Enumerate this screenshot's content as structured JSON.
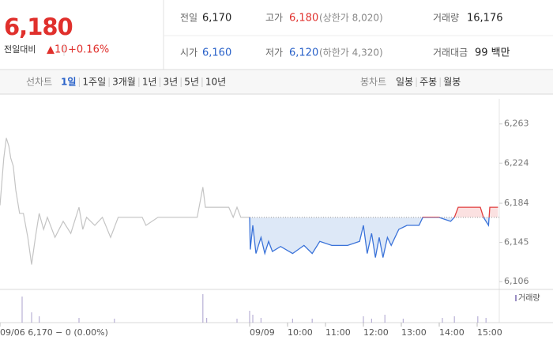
{
  "header": {
    "price": "6,180",
    "change_label": "전일대비",
    "change": "▲10",
    "change_rate": "+0.16%",
    "stats": [
      {
        "label": "전일",
        "value": "6,170"
      },
      {
        "label": "고가",
        "value": "6,180",
        "note": "(상한가 8,020)"
      },
      {
        "label": "거래량",
        "value": "16,176"
      },
      {
        "label": "시가",
        "value": "6,160"
      },
      {
        "label": "저가",
        "value": "6,120",
        "note": "(하한가 4,320)"
      },
      {
        "label": "거래대금",
        "value": "99 백만"
      }
    ]
  },
  "tabs": {
    "line_label": "선차트",
    "line_periods": [
      "1일",
      "1주일",
      "3개월",
      "1년",
      "3년",
      "5년",
      "10년"
    ],
    "candle_label": "봉차트",
    "candle_periods": [
      "일봉",
      "주봉",
      "월봉"
    ]
  },
  "chart_data": {
    "type": "line",
    "xlim": [
      -395,
      395
    ],
    "ylim": [
      6099,
      6288
    ],
    "yticks": [
      {
        "value": 6263,
        "label": "6,263"
      },
      {
        "value": 6224,
        "label": "6,224"
      },
      {
        "value": 6184,
        "label": "6,184"
      },
      {
        "value": 6145,
        "label": "6,145"
      },
      {
        "value": 6106,
        "label": "6,106"
      }
    ],
    "xticks": [
      {
        "value": -395,
        "label": "09/06 6,170 − 0 (0.00%)"
      },
      {
        "value": 0,
        "label": "09/09"
      },
      {
        "value": 60,
        "label": "10:00"
      },
      {
        "value": 120,
        "label": "11:00"
      },
      {
        "value": 180,
        "label": "12:00"
      },
      {
        "value": 240,
        "label": "13:00"
      },
      {
        "value": 300,
        "label": "14:00"
      },
      {
        "value": 360,
        "label": "15:00"
      }
    ],
    "reference_line": 6170,
    "series": [
      {
        "color": "#c4c4c4",
        "x": [
          -395,
          -389,
          -385,
          -381,
          -378,
          -374,
          -370,
          -364,
          -358,
          -351,
          -345,
          -339,
          -333,
          -326,
          -320,
          -308,
          -295,
          -283,
          -270,
          -264,
          -258,
          -245,
          -233,
          -220,
          -208,
          -170,
          -164,
          -145,
          -83,
          -74,
          -70,
          -33,
          -26,
          -20,
          -14,
          0
        ],
        "values": [
          6182,
          6229,
          6249,
          6241,
          6229,
          6221,
          6197,
          6174,
          6174,
          6150,
          6123,
          6150,
          6174,
          6158,
          6170,
          6150,
          6166,
          6154,
          6180,
          6158,
          6170,
          6162,
          6170,
          6150,
          6170,
          6170,
          6162,
          6170,
          6170,
          6200,
          6180,
          6180,
          6170,
          6180,
          6170,
          6170
        ]
      },
      {
        "color": "#3b73d9",
        "up_color": "#e03c3c",
        "fill": "#dde8f7",
        "up_fill": "#fbe1e1",
        "x": [
          0,
          1,
          5,
          10,
          18,
          24,
          30,
          36,
          49,
          68,
          86,
          99,
          111,
          130,
          155,
          174,
          180,
          186,
          193,
          199,
          205,
          211,
          218,
          224,
          230,
          236,
          249,
          268,
          274,
          286,
          299,
          318,
          324,
          330,
          355,
          365,
          370,
          378,
          380,
          393
        ],
        "values": [
          6170,
          6138,
          6162,
          6134,
          6150,
          6134,
          6146,
          6136,
          6141,
          6134,
          6142,
          6134,
          6146,
          6142,
          6142,
          6146,
          6162,
          6134,
          6154,
          6130,
          6150,
          6130,
          6150,
          6142,
          6150,
          6158,
          6162,
          6162,
          6170,
          6170,
          6170,
          6166,
          6170,
          6180,
          6180,
          6180,
          6170,
          6162,
          6180,
          6180
        ]
      }
    ],
    "volume": {
      "name": "거래량",
      "color": "#9b8fc4",
      "ylim": [
        0,
        40
      ],
      "x": [
        -360,
        -345,
        -333,
        -270,
        -214,
        -74,
        -68,
        -20,
        0,
        5,
        18,
        68,
        99,
        180,
        193,
        214,
        243,
        305,
        324,
        361,
        374
      ],
      "values": [
        33,
        13,
        8,
        6,
        5,
        36,
        6,
        5,
        15,
        10,
        6,
        5,
        5,
        8,
        5,
        10,
        5,
        6,
        8,
        8,
        6
      ]
    }
  }
}
